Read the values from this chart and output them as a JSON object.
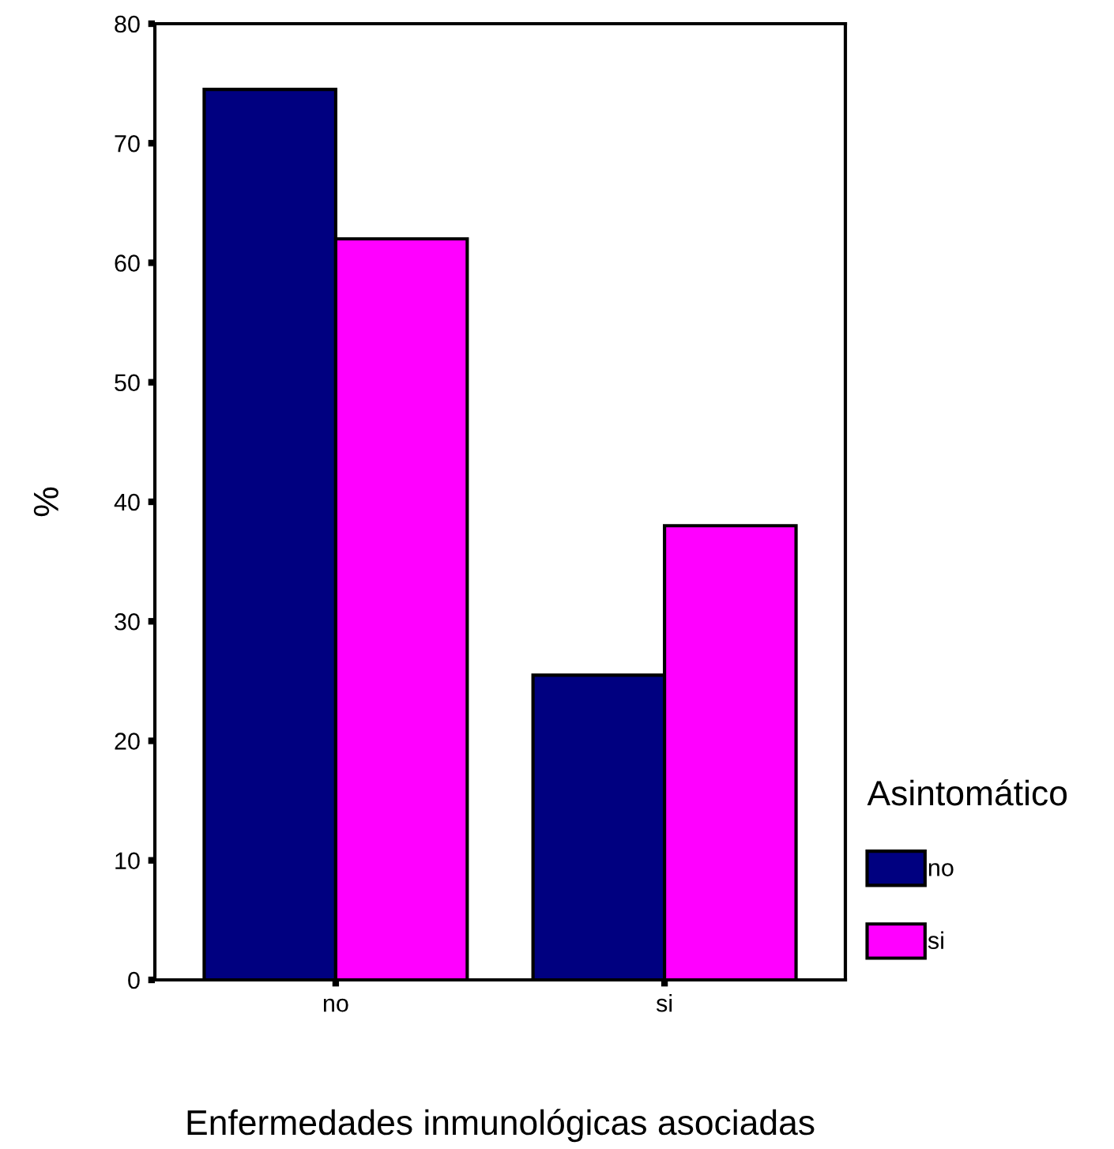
{
  "chart_data": {
    "type": "bar",
    "categories": [
      "no",
      "si"
    ],
    "xlabel": "Enfermedades inmunológicas asociadas",
    "ylabel": "%",
    "legend_title": "Asintomático",
    "series": [
      {
        "name": "no",
        "color": "#000080",
        "values": [
          74.5,
          25.5
        ]
      },
      {
        "name": "si",
        "color": "#ff00ff",
        "values": [
          62,
          38
        ]
      }
    ],
    "ylim": [
      0,
      80
    ],
    "yticks": [
      0,
      10,
      20,
      30,
      40,
      50,
      60,
      70,
      80
    ],
    "grid": false,
    "legend": "right"
  }
}
